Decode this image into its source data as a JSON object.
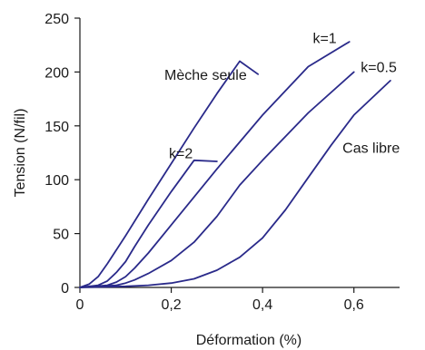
{
  "chart_data": {
    "type": "line",
    "xlabel": "Déformation (%)",
    "ylabel": "Tension (N/fil)",
    "xlim": [
      0,
      0.7
    ],
    "ylim": [
      0,
      250
    ],
    "x_ticks": [
      {
        "value": 0,
        "label": "0"
      },
      {
        "value": 0.2,
        "label": "0,2"
      },
      {
        "value": 0.4,
        "label": "0,4"
      },
      {
        "value": 0.6,
        "label": "0,6"
      }
    ],
    "y_ticks": [
      {
        "value": 0,
        "label": "0"
      },
      {
        "value": 50,
        "label": "50"
      },
      {
        "value": 100,
        "label": "100"
      },
      {
        "value": 150,
        "label": "150"
      },
      {
        "value": 200,
        "label": "200"
      },
      {
        "value": 250,
        "label": "250"
      }
    ],
    "grid": false,
    "line_color": "#2a2a8a",
    "series": [
      {
        "name": "Mèche seule",
        "points": [
          [
            0,
            0
          ],
          [
            0.02,
            3
          ],
          [
            0.04,
            10
          ],
          [
            0.06,
            22
          ],
          [
            0.1,
            48
          ],
          [
            0.15,
            82
          ],
          [
            0.2,
            115
          ],
          [
            0.25,
            148
          ],
          [
            0.3,
            180
          ],
          [
            0.35,
            210
          ],
          [
            0.39,
            198
          ]
        ],
        "label_at": [
          0.185,
          198
        ]
      },
      {
        "name": "k=2",
        "points": [
          [
            0,
            0
          ],
          [
            0.04,
            2
          ],
          [
            0.06,
            6
          ],
          [
            0.08,
            14
          ],
          [
            0.1,
            24
          ],
          [
            0.12,
            38
          ],
          [
            0.15,
            58
          ],
          [
            0.2,
            89
          ],
          [
            0.25,
            118
          ],
          [
            0.3,
            117
          ]
        ],
        "label_at": [
          0.195,
          125
        ]
      },
      {
        "name": "k=1",
        "points": [
          [
            0,
            0
          ],
          [
            0.06,
            2
          ],
          [
            0.08,
            5
          ],
          [
            0.1,
            10
          ],
          [
            0.12,
            18
          ],
          [
            0.15,
            32
          ],
          [
            0.2,
            58
          ],
          [
            0.3,
            110
          ],
          [
            0.4,
            160
          ],
          [
            0.5,
            205
          ],
          [
            0.59,
            228
          ]
        ],
        "label_at": [
          0.51,
          232
        ]
      },
      {
        "name": "k=0.5",
        "points": [
          [
            0,
            0
          ],
          [
            0.08,
            2
          ],
          [
            0.1,
            4
          ],
          [
            0.12,
            7
          ],
          [
            0.15,
            13
          ],
          [
            0.2,
            25
          ],
          [
            0.25,
            42
          ],
          [
            0.3,
            66
          ],
          [
            0.35,
            95
          ],
          [
            0.4,
            118
          ],
          [
            0.5,
            162
          ],
          [
            0.6,
            200
          ]
        ],
        "label_at": [
          0.615,
          205
        ]
      },
      {
        "name": "Cas libre",
        "points": [
          [
            0,
            0
          ],
          [
            0.1,
            1
          ],
          [
            0.15,
            2
          ],
          [
            0.2,
            4
          ],
          [
            0.25,
            8
          ],
          [
            0.3,
            16
          ],
          [
            0.35,
            28
          ],
          [
            0.4,
            46
          ],
          [
            0.45,
            72
          ],
          [
            0.5,
            102
          ],
          [
            0.55,
            132
          ],
          [
            0.6,
            160
          ],
          [
            0.68,
            192
          ]
        ],
        "label_at": [
          0.575,
          130
        ]
      }
    ]
  }
}
